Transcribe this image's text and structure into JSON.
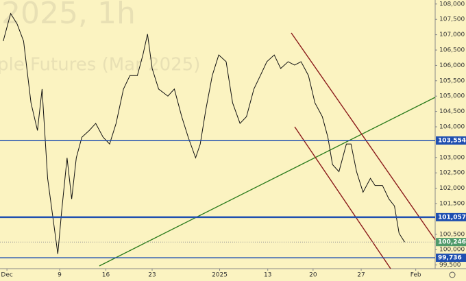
{
  "watermark": [
    "2025, 1h",
    "ple Futures (Mar 2025)"
  ],
  "chart_data": {
    "type": "line",
    "x": [
      -0.4,
      0.4,
      1.1,
      1.8,
      2.6,
      3.3,
      3.8,
      4.4,
      5.0,
      5.5,
      5.9,
      6.5,
      7.0,
      7.5,
      8.1,
      8.9,
      9.6,
      10.4,
      11.1,
      11.8,
      12.6,
      13.3,
      14.1,
      14.7,
      15.2,
      15.7,
      16.4,
      17.4,
      18.1,
      18.9,
      19.6,
      20.4,
      20.9,
      21.5,
      22.2,
      22.9,
      23.7,
      24.4,
      25.2,
      25.9,
      26.7,
      27.4,
      28.1,
      28.9,
      29.6,
      30.4,
      31.1,
      31.8,
      32.6,
      33.3,
      34.1,
      34.7,
      35.2,
      35.9,
      36.7,
      37.2,
      37.8,
      38.5,
      39.3,
      39.8,
      40.6,
      41.3,
      41.9,
      42.4,
      43.0
    ],
    "series": [
      {
        "color": "#111111",
        "values": [
          106790,
          107690,
          107350,
          106790,
          104780,
          103880,
          105230,
          102320,
          100980,
          99860,
          101200,
          102990,
          101650,
          102990,
          103660,
          103880,
          104110,
          103660,
          103440,
          104110,
          105230,
          105670,
          105670,
          106340,
          107020,
          105900,
          105230,
          105000,
          105230,
          104330,
          103660,
          102990,
          103440,
          104550,
          105670,
          106340,
          106120,
          104780,
          104110,
          104330,
          105230,
          105670,
          106120,
          106340,
          105900,
          106120,
          106010,
          106120,
          105670,
          104780,
          104330,
          103660,
          102770,
          102540,
          103440,
          103440,
          102540,
          101870,
          102320,
          102090,
          102090,
          101650,
          101420,
          100530,
          100246
        ]
      }
    ],
    "xlim": [
      -0.75,
      46.3
    ],
    "xticks": [
      {
        "value": 0,
        "label": "Dec"
      },
      {
        "value": 5.7,
        "label": "9"
      },
      {
        "value": 10.7,
        "label": "16"
      },
      {
        "value": 15.7,
        "label": "23"
      },
      {
        "value": 23,
        "label": "2025"
      },
      {
        "value": 28.2,
        "label": "13"
      },
      {
        "value": 33.1,
        "label": "20"
      },
      {
        "value": 38.3,
        "label": "27"
      },
      {
        "value": 44.2,
        "label": "Feb"
      }
    ],
    "ylim": [
      99380,
      108130
    ],
    "yticks": [
      {
        "value": 99500,
        "label": "99,500"
      },
      {
        "value": 100000,
        "label": "100,000"
      },
      {
        "value": 100500,
        "label": "100,500"
      },
      {
        "value": 101500,
        "label": "101,500"
      },
      {
        "value": 102000,
        "label": "102,000"
      },
      {
        "value": 102500,
        "label": "102,500"
      },
      {
        "value": 103000,
        "label": "103,000"
      },
      {
        "value": 104000,
        "label": "104,000"
      },
      {
        "value": 104500,
        "label": "104,500"
      },
      {
        "value": 105000,
        "label": "105,000"
      },
      {
        "value": 105500,
        "label": "105,500"
      },
      {
        "value": 106000,
        "label": "106,000"
      },
      {
        "value": 106500,
        "label": "106,500"
      },
      {
        "value": 107000,
        "label": "107,000"
      },
      {
        "value": 107500,
        "label": "107,500"
      },
      {
        "value": 108000,
        "label": "108,000"
      }
    ],
    "levels": [
      {
        "value": 103554,
        "label": "103,554",
        "color": "#1f4fb0"
      },
      {
        "value": 101057,
        "label": "101,057",
        "color": "#1f4fb0"
      },
      {
        "value": 99736,
        "label": "99,736",
        "color": "#1f4fb0"
      }
    ],
    "current": {
      "value": 100246,
      "label": "100,246",
      "color": "#4f9a6a"
    }
  }
}
